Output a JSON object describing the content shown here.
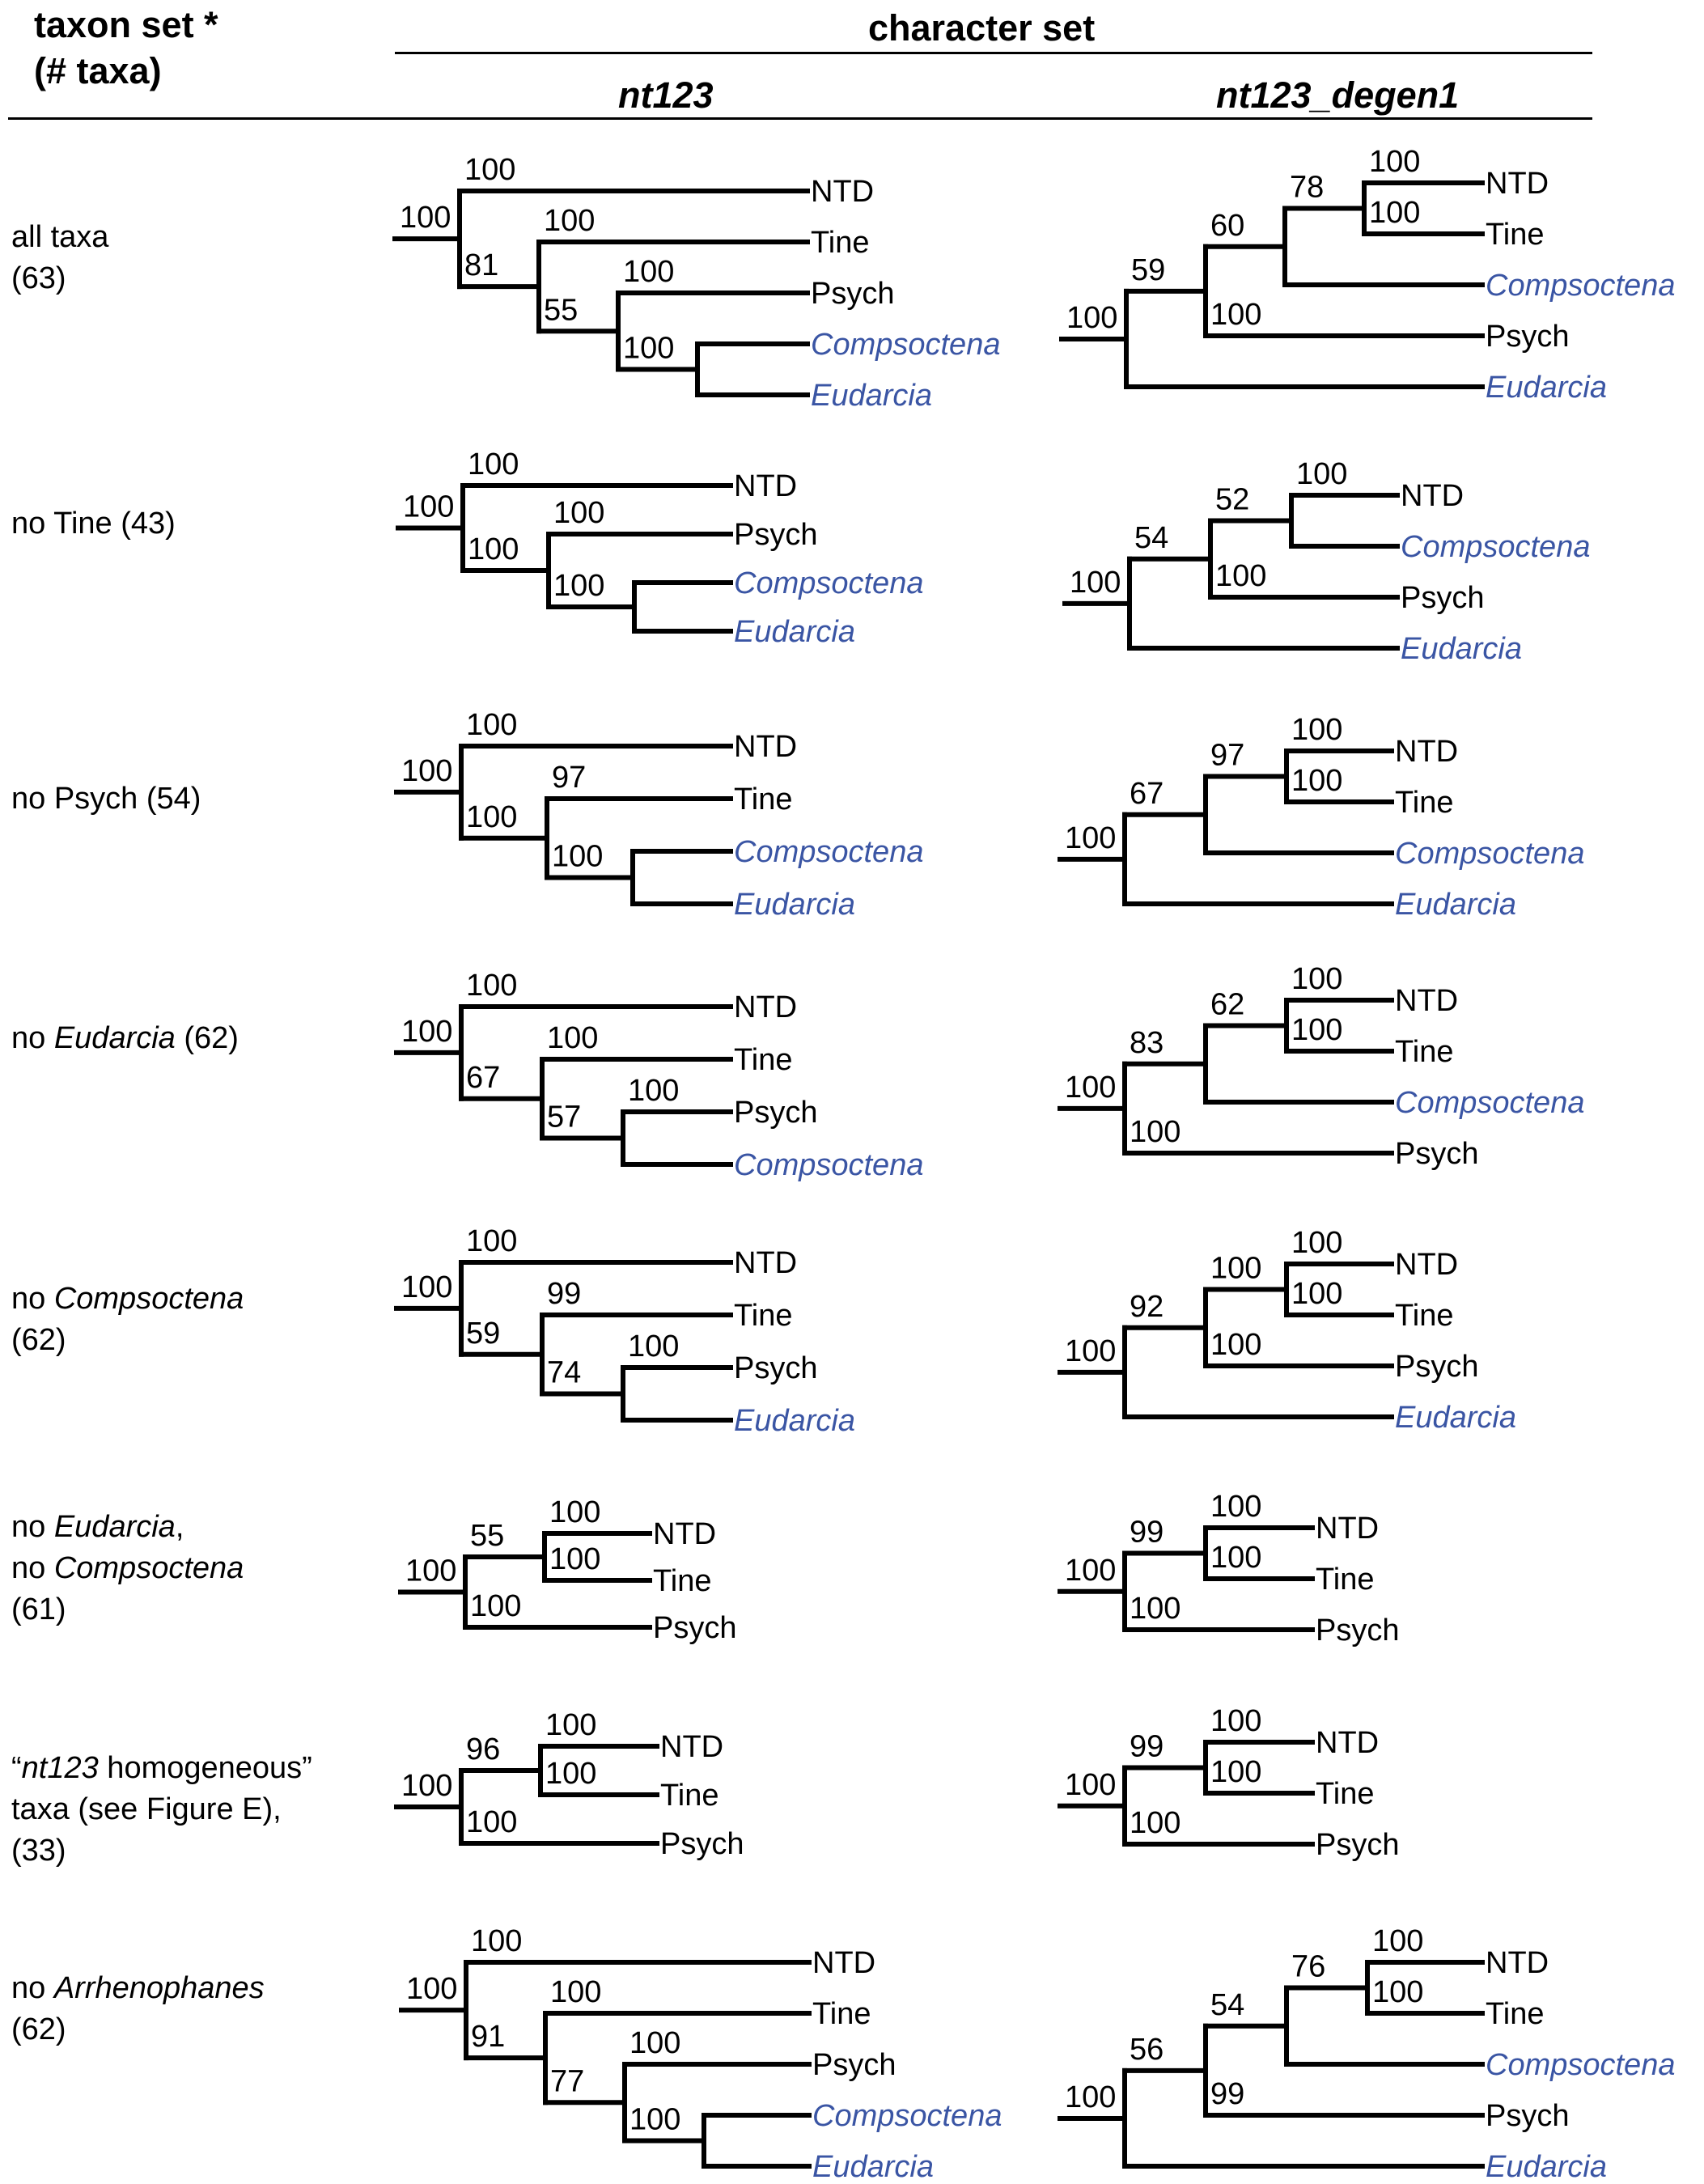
{
  "header": {
    "taxon_set_line1": "taxon set *",
    "taxon_set_line2": "(# taxa)",
    "character_set": "character set",
    "col_nt123": "nt123",
    "col_degen": "nt123_degen1"
  },
  "colors": {
    "italic_taxon": "#3a55a4",
    "branch": "#000000"
  },
  "rows": [
    {
      "label": [
        [
          {
            "t": "all taxa"
          }
        ],
        [
          {
            "t": "(63)"
          }
        ]
      ],
      "nt123": {
        "tips": [
          {
            "name": "NTD",
            "it": false
          },
          {
            "name": "Tine",
            "it": false
          },
          {
            "name": "Psych",
            "it": false
          },
          {
            "name": "Compsoctena",
            "it": true
          },
          {
            "name": "Eudarcia",
            "it": true
          }
        ],
        "tree": {
          "s": "100",
          "c": [
            {
              "s": "100",
              "t": 0
            },
            {
              "s": "81",
              "c": [
                {
                  "s": "100",
                  "t": 1
                },
                {
                  "s": "55",
                  "c": [
                    {
                      "s": "100",
                      "t": 2
                    },
                    {
                      "s": "100",
                      "c": [
                        {
                          "t": 3
                        },
                        {
                          "t": 4
                        }
                      ]
                    }
                  ]
                }
              ]
            }
          ]
        }
      },
      "degen": {
        "tips": [
          {
            "name": "NTD",
            "it": false
          },
          {
            "name": "Tine",
            "it": false
          },
          {
            "name": "Compsoctena",
            "it": true
          },
          {
            "name": "Psych",
            "it": false
          },
          {
            "name": "Eudarcia",
            "it": true
          }
        ],
        "tree": {
          "s": "100",
          "c": [
            {
              "s": "59",
              "c": [
                {
                  "s": "60",
                  "c": [
                    {
                      "s": "78",
                      "c": [
                        {
                          "s": "100",
                          "t": 0
                        },
                        {
                          "s": "100",
                          "t": 1
                        }
                      ]
                    },
                    {
                      "t": 2
                    }
                  ]
                },
                {
                  "s": "100",
                  "t": 3
                }
              ]
            },
            {
              "t": 4
            }
          ]
        }
      }
    },
    {
      "label": [
        [
          {
            "t": "no Tine (43)"
          }
        ]
      ],
      "nt123": {
        "tips": [
          {
            "name": "NTD",
            "it": false
          },
          {
            "name": "Psych",
            "it": false
          },
          {
            "name": "Compsoctena",
            "it": true
          },
          {
            "name": "Eudarcia",
            "it": true
          }
        ],
        "tree": {
          "s": "100",
          "c": [
            {
              "s": "100",
              "t": 0
            },
            {
              "s": "100",
              "c": [
                {
                  "s": "100",
                  "t": 1
                },
                {
                  "s": "100",
                  "c": [
                    {
                      "t": 2
                    },
                    {
                      "t": 3
                    }
                  ]
                }
              ]
            }
          ]
        }
      },
      "degen": {
        "tips": [
          {
            "name": "NTD",
            "it": false
          },
          {
            "name": "Compsoctena",
            "it": true
          },
          {
            "name": "Psych",
            "it": false
          },
          {
            "name": "Eudarcia",
            "it": true
          }
        ],
        "tree": {
          "s": "100",
          "c": [
            {
              "s": "54",
              "c": [
                {
                  "s": "52",
                  "c": [
                    {
                      "s": "100",
                      "t": 0
                    },
                    {
                      "t": 1
                    }
                  ]
                },
                {
                  "s": "100",
                  "t": 2
                }
              ]
            },
            {
              "t": 3
            }
          ]
        }
      }
    },
    {
      "label": [
        [
          {
            "t": "no Psych (54)"
          }
        ]
      ],
      "nt123": {
        "tips": [
          {
            "name": "NTD",
            "it": false
          },
          {
            "name": "Tine",
            "it": false
          },
          {
            "name": "Compsoctena",
            "it": true
          },
          {
            "name": "Eudarcia",
            "it": true
          }
        ],
        "tree": {
          "s": "100",
          "c": [
            {
              "s": "100",
              "t": 0
            },
            {
              "s": "100",
              "c": [
                {
                  "s": "97",
                  "t": 1
                },
                {
                  "s": "100",
                  "c": [
                    {
                      "t": 2
                    },
                    {
                      "t": 3
                    }
                  ]
                }
              ]
            }
          ]
        }
      },
      "degen": {
        "tips": [
          {
            "name": "NTD",
            "it": false
          },
          {
            "name": "Tine",
            "it": false
          },
          {
            "name": "Compsoctena",
            "it": true
          },
          {
            "name": "Eudarcia",
            "it": true
          }
        ],
        "tree": {
          "s": "100",
          "c": [
            {
              "s": "67",
              "c": [
                {
                  "s": "97",
                  "c": [
                    {
                      "s": "100",
                      "t": 0
                    },
                    {
                      "s": "100",
                      "t": 1
                    }
                  ]
                },
                {
                  "t": 2
                }
              ]
            },
            {
              "t": 3
            }
          ]
        }
      }
    },
    {
      "label": [
        [
          {
            "t": "no "
          },
          {
            "t": "Eudarcia",
            "it": true
          },
          {
            "t": " (62)"
          }
        ]
      ],
      "nt123": {
        "tips": [
          {
            "name": "NTD",
            "it": false
          },
          {
            "name": "Tine",
            "it": false
          },
          {
            "name": "Psych",
            "it": false
          },
          {
            "name": "Compsoctena",
            "it": true
          }
        ],
        "tree": {
          "s": "100",
          "c": [
            {
              "s": "100",
              "t": 0
            },
            {
              "s": "67",
              "c": [
                {
                  "s": "100",
                  "t": 1
                },
                {
                  "s": "57",
                  "c": [
                    {
                      "s": "100",
                      "t": 2
                    },
                    {
                      "t": 3
                    }
                  ]
                }
              ]
            }
          ]
        }
      },
      "degen": {
        "tips": [
          {
            "name": "NTD",
            "it": false
          },
          {
            "name": "Tine",
            "it": false
          },
          {
            "name": "Compsoctena",
            "it": true
          },
          {
            "name": "Psych",
            "it": false
          }
        ],
        "tree": {
          "s": "100",
          "c": [
            {
              "s": "83",
              "c": [
                {
                  "s": "62",
                  "c": [
                    {
                      "s": "100",
                      "t": 0
                    },
                    {
                      "s": "100",
                      "t": 1
                    }
                  ]
                },
                {
                  "t": 2
                }
              ]
            },
            {
              "s": "100",
              "t": 3
            }
          ]
        }
      }
    },
    {
      "label": [
        [
          {
            "t": "no "
          },
          {
            "t": "Compsoctena",
            "it": true
          }
        ],
        [
          {
            "t": "(62)"
          }
        ]
      ],
      "nt123": {
        "tips": [
          {
            "name": "NTD",
            "it": false
          },
          {
            "name": "Tine",
            "it": false
          },
          {
            "name": "Psych",
            "it": false
          },
          {
            "name": "Eudarcia",
            "it": true
          }
        ],
        "tree": {
          "s": "100",
          "c": [
            {
              "s": "100",
              "t": 0
            },
            {
              "s": "59",
              "c": [
                {
                  "s": "99",
                  "t": 1
                },
                {
                  "s": "74",
                  "c": [
                    {
                      "s": "100",
                      "t": 2
                    },
                    {
                      "t": 3
                    }
                  ]
                }
              ]
            }
          ]
        }
      },
      "degen": {
        "tips": [
          {
            "name": "NTD",
            "it": false
          },
          {
            "name": "Tine",
            "it": false
          },
          {
            "name": "Psych",
            "it": false
          },
          {
            "name": "Eudarcia",
            "it": true
          }
        ],
        "tree": {
          "s": "100",
          "c": [
            {
              "s": "92",
              "c": [
                {
                  "s": "100",
                  "c": [
                    {
                      "s": "100",
                      "t": 0
                    },
                    {
                      "s": "100",
                      "t": 1
                    }
                  ]
                },
                {
                  "s": "100",
                  "t": 2
                }
              ]
            },
            {
              "t": 3
            }
          ]
        }
      }
    },
    {
      "label": [
        [
          {
            "t": "no "
          },
          {
            "t": "Eudarcia",
            "it": true
          },
          {
            "t": ","
          }
        ],
        [
          {
            "t": "no "
          },
          {
            "t": "Compsoctena",
            "it": true
          }
        ],
        [
          {
            "t": "(61)"
          }
        ]
      ],
      "nt123": {
        "tips": [
          {
            "name": "NTD",
            "it": false
          },
          {
            "name": "Tine",
            "it": false
          },
          {
            "name": "Psych",
            "it": false
          }
        ],
        "tree": {
          "s": "100",
          "c": [
            {
              "s": "55",
              "c": [
                {
                  "s": "100",
                  "t": 0
                },
                {
                  "s": "100",
                  "t": 1
                }
              ]
            },
            {
              "s": "100",
              "t": 2
            }
          ]
        }
      },
      "degen": {
        "tips": [
          {
            "name": "NTD",
            "it": false
          },
          {
            "name": "Tine",
            "it": false
          },
          {
            "name": "Psych",
            "it": false
          }
        ],
        "tree": {
          "s": "100",
          "c": [
            {
              "s": "99",
              "c": [
                {
                  "s": "100",
                  "t": 0
                },
                {
                  "s": "100",
                  "t": 1
                }
              ]
            },
            {
              "s": "100",
              "t": 2
            }
          ]
        }
      }
    },
    {
      "label": [
        [
          {
            "t": "“"
          },
          {
            "t": "nt123",
            "it": true
          },
          {
            "t": " homogeneous”"
          }
        ],
        [
          {
            "t": "taxa (see Figure E),"
          }
        ],
        [
          {
            "t": "(33)"
          }
        ]
      ],
      "nt123": {
        "tips": [
          {
            "name": "NTD",
            "it": false
          },
          {
            "name": "Tine",
            "it": false
          },
          {
            "name": "Psych",
            "it": false
          }
        ],
        "tree": {
          "s": "100",
          "c": [
            {
              "s": "96",
              "c": [
                {
                  "s": "100",
                  "t": 0
                },
                {
                  "s": "100",
                  "t": 1
                }
              ]
            },
            {
              "s": "100",
              "t": 2
            }
          ]
        }
      },
      "degen": {
        "tips": [
          {
            "name": "NTD",
            "it": false
          },
          {
            "name": "Tine",
            "it": false
          },
          {
            "name": "Psych",
            "it": false
          }
        ],
        "tree": {
          "s": "100",
          "c": [
            {
              "s": "99",
              "c": [
                {
                  "s": "100",
                  "t": 0
                },
                {
                  "s": "100",
                  "t": 1
                }
              ]
            },
            {
              "s": "100",
              "t": 2
            }
          ]
        }
      }
    },
    {
      "label": [
        [
          {
            "t": "no "
          },
          {
            "t": "Arrhenophanes",
            "it": true
          }
        ],
        [
          {
            "t": "(62)"
          }
        ]
      ],
      "nt123": {
        "tips": [
          {
            "name": "NTD",
            "it": false
          },
          {
            "name": "Tine",
            "it": false
          },
          {
            "name": "Psych",
            "it": false
          },
          {
            "name": "Compsoctena",
            "it": true
          },
          {
            "name": "Eudarcia",
            "it": true
          }
        ],
        "tree": {
          "s": "100",
          "c": [
            {
              "s": "100",
              "t": 0
            },
            {
              "s": "91",
              "c": [
                {
                  "s": "100",
                  "t": 1
                },
                {
                  "s": "77",
                  "c": [
                    {
                      "s": "100",
                      "t": 2
                    },
                    {
                      "s": "100",
                      "c": [
                        {
                          "t": 3
                        },
                        {
                          "t": 4
                        }
                      ]
                    }
                  ]
                }
              ]
            }
          ]
        }
      },
      "degen": {
        "tips": [
          {
            "name": "NTD",
            "it": false
          },
          {
            "name": "Tine",
            "it": false
          },
          {
            "name": "Compsoctena",
            "it": true
          },
          {
            "name": "Psych",
            "it": false
          },
          {
            "name": "Eudarcia",
            "it": true
          }
        ],
        "tree": {
          "s": "100",
          "c": [
            {
              "s": "56",
              "c": [
                {
                  "s": "54",
                  "c": [
                    {
                      "s": "76",
                      "c": [
                        {
                          "s": "100",
                          "t": 0
                        },
                        {
                          "s": "100",
                          "t": 1
                        }
                      ]
                    },
                    {
                      "t": 2
                    }
                  ]
                },
                {
                  "s": "99",
                  "t": 3
                }
              ]
            },
            {
              "t": 4
            }
          ]
        }
      }
    }
  ]
}
